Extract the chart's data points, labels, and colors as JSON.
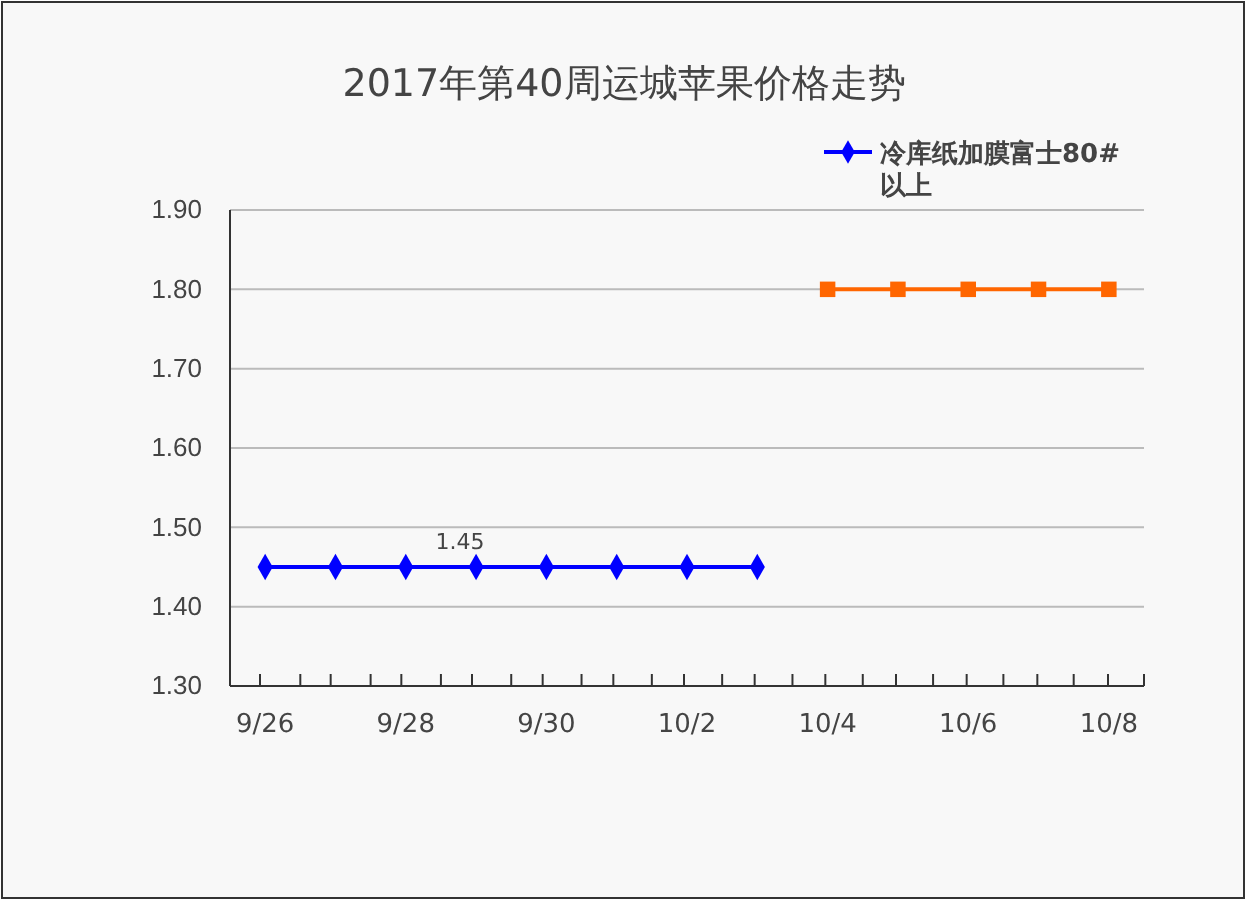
{
  "chart_data": {
    "type": "line",
    "title": "2017年第40周运城苹果价格走势",
    "categories": [
      "9/26",
      null,
      "9/28",
      null,
      "9/30",
      null,
      "10/2",
      null,
      "10/4",
      null,
      "10/6",
      null,
      "10/8"
    ],
    "series": [
      {
        "name": "冷库纸加膜富士80#以上",
        "color": "#0000ff",
        "marker": "diamond",
        "values": [
          1.45,
          1.45,
          1.45,
          1.45,
          1.45,
          1.45,
          1.45,
          1.45,
          null,
          null,
          null,
          null,
          null
        ],
        "value_labels": [
          null,
          null,
          null,
          "1.45",
          null,
          null,
          null,
          null,
          null,
          null,
          null,
          null,
          null
        ]
      },
      {
        "color": "#ff6600",
        "marker": "square",
        "values": [
          null,
          null,
          null,
          null,
          null,
          null,
          null,
          null,
          1.8,
          1.8,
          1.8,
          1.8,
          1.8
        ]
      }
    ],
    "ylim": [
      1.3,
      1.9
    ],
    "yticks": [
      {
        "value": 1.3,
        "label": "1.30"
      },
      {
        "value": 1.4,
        "label": "1.40"
      },
      {
        "value": 1.5,
        "label": "1.50"
      },
      {
        "value": 1.6,
        "label": "1.60"
      },
      {
        "value": 1.7,
        "label": "1.70"
      },
      {
        "value": 1.8,
        "label": "1.80"
      },
      {
        "value": 1.9,
        "label": "1.90"
      }
    ],
    "grid": "y",
    "legend": "top right",
    "line_style": "solid"
  }
}
